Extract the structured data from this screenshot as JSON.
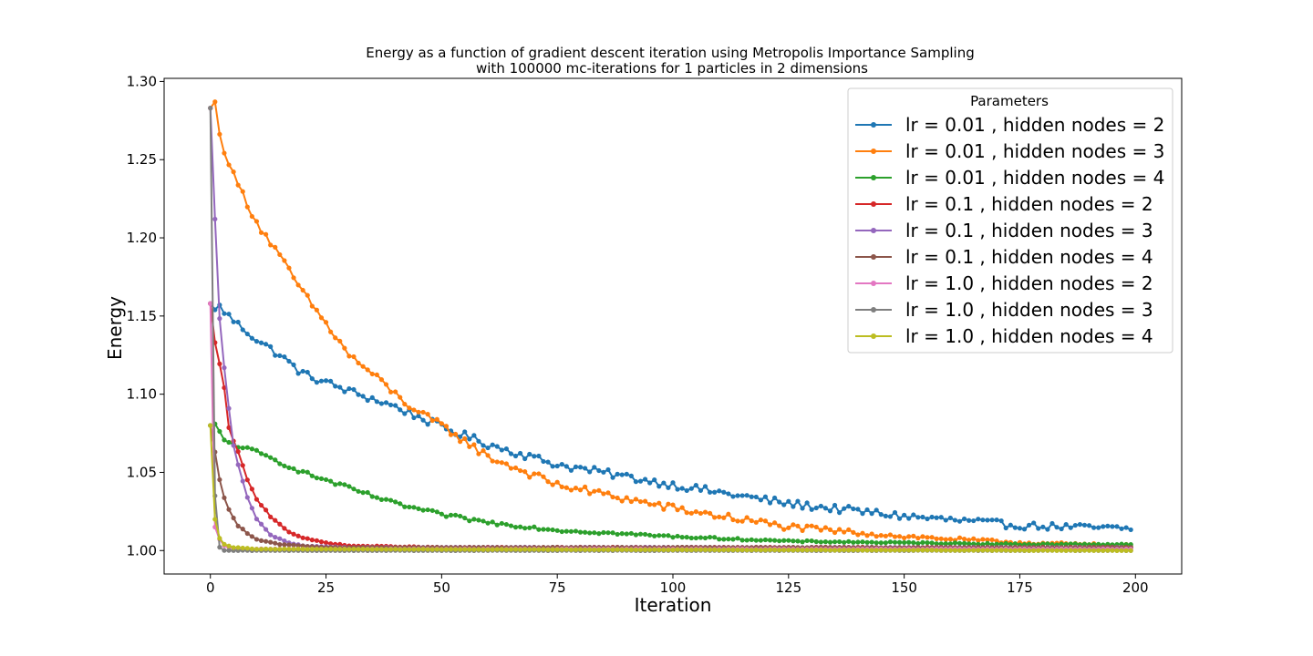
{
  "chart_data": {
    "type": "line",
    "title": "Energy as a function of gradient descent iteration using Metropolis Importance Sampling",
    "subtitle": "with 100000 mc-iterations for 1 particles in 2 dimensions",
    "xlabel": "Iteration",
    "ylabel": "Energy",
    "xlim": [
      -10,
      210
    ],
    "ylim": [
      0.985,
      1.302
    ],
    "xticks": [
      0,
      25,
      50,
      75,
      100,
      125,
      150,
      175,
      200
    ],
    "xtick_labels": [
      "0",
      "25",
      "50",
      "75",
      "100",
      "125",
      "150",
      "175",
      "200"
    ],
    "yticks": [
      1.0,
      1.05,
      1.1,
      1.15,
      1.2,
      1.25,
      1.3
    ],
    "ytick_labels": [
      "1.00",
      "1.05",
      "1.10",
      "1.15",
      "1.20",
      "1.25",
      "1.30"
    ],
    "grid": false,
    "legend": {
      "title": "Parameters",
      "position": "top-right"
    },
    "x_range": [
      0,
      199
    ],
    "series": [
      {
        "name": "lr = 0.01 , hidden nodes = 2",
        "color": "#1f77b4",
        "keypoints": [
          [
            0,
            1.158
          ],
          [
            1,
            1.154
          ],
          [
            2,
            1.156
          ],
          [
            5,
            1.147
          ],
          [
            10,
            1.135
          ],
          [
            15,
            1.125
          ],
          [
            20,
            1.113
          ],
          [
            30,
            1.102
          ],
          [
            40,
            1.092
          ],
          [
            50,
            1.079
          ],
          [
            60,
            1.068
          ],
          [
            75,
            1.055
          ],
          [
            100,
            1.042
          ],
          [
            125,
            1.03
          ],
          [
            150,
            1.022
          ],
          [
            175,
            1.016
          ],
          [
            199,
            1.014
          ]
        ],
        "noise": 0.0025
      },
      {
        "name": "lr = 0.01 , hidden nodes = 3",
        "color": "#ff7f0e",
        "keypoints": [
          [
            0,
            1.283
          ],
          [
            1,
            1.287
          ],
          [
            2,
            1.265
          ],
          [
            5,
            1.24
          ],
          [
            10,
            1.21
          ],
          [
            15,
            1.188
          ],
          [
            20,
            1.165
          ],
          [
            25,
            1.145
          ],
          [
            30,
            1.125
          ],
          [
            35,
            1.113
          ],
          [
            40,
            1.1
          ],
          [
            45,
            1.088
          ],
          [
            50,
            1.08
          ],
          [
            60,
            1.06
          ],
          [
            75,
            1.042
          ],
          [
            100,
            1.027
          ],
          [
            125,
            1.015
          ],
          [
            150,
            1.009
          ],
          [
            175,
            1.005
          ],
          [
            199,
            1.003
          ]
        ],
        "noise": 0.0025
      },
      {
        "name": "lr = 0.01 , hidden nodes = 4",
        "color": "#2ca02c",
        "keypoints": [
          [
            0,
            1.08
          ],
          [
            1,
            1.081
          ],
          [
            3,
            1.07
          ],
          [
            10,
            1.063
          ],
          [
            20,
            1.05
          ],
          [
            30,
            1.04
          ],
          [
            40,
            1.03
          ],
          [
            50,
            1.023
          ],
          [
            60,
            1.018
          ],
          [
            75,
            1.013
          ],
          [
            100,
            1.009
          ],
          [
            125,
            1.006
          ],
          [
            150,
            1.005
          ],
          [
            175,
            1.004
          ],
          [
            199,
            1.004
          ]
        ],
        "noise": 0.0012
      },
      {
        "name": "lr = 0.1 , hidden nodes = 2",
        "color": "#d62728",
        "keypoints": [
          [
            0,
            1.158
          ],
          [
            1,
            1.133
          ],
          [
            2,
            1.119
          ],
          [
            3,
            1.104
          ],
          [
            4,
            1.078
          ],
          [
            6,
            1.063
          ],
          [
            8,
            1.045
          ],
          [
            10,
            1.033
          ],
          [
            13,
            1.022
          ],
          [
            17,
            1.012
          ],
          [
            20,
            1.008
          ],
          [
            25,
            1.005
          ],
          [
            30,
            1.003
          ],
          [
            50,
            1.002
          ],
          [
            199,
            1.002
          ]
        ],
        "noise": 0.0006
      },
      {
        "name": "lr = 0.1 , hidden nodes = 3",
        "color": "#9467bd",
        "keypoints": [
          [
            0,
            1.283
          ],
          [
            1,
            1.212
          ],
          [
            2,
            1.148
          ],
          [
            3,
            1.117
          ],
          [
            4,
            1.091
          ],
          [
            5,
            1.067
          ],
          [
            6,
            1.055
          ],
          [
            8,
            1.034
          ],
          [
            10,
            1.02
          ],
          [
            13,
            1.01
          ],
          [
            17,
            1.005
          ],
          [
            20,
            1.003
          ],
          [
            30,
            1.002
          ],
          [
            199,
            1.002
          ]
        ],
        "noise": 0.0005
      },
      {
        "name": "lr = 0.1 , hidden nodes = 4",
        "color": "#8c564b",
        "keypoints": [
          [
            0,
            1.08
          ],
          [
            1,
            1.063
          ],
          [
            2,
            1.045
          ],
          [
            3,
            1.034
          ],
          [
            4,
            1.026
          ],
          [
            6,
            1.016
          ],
          [
            8,
            1.011
          ],
          [
            10,
            1.007
          ],
          [
            15,
            1.004
          ],
          [
            25,
            1.002
          ],
          [
            199,
            1.002
          ]
        ],
        "noise": 0.0004
      },
      {
        "name": "lr = 1.0 , hidden nodes = 2",
        "color": "#e377c2",
        "keypoints": [
          [
            0,
            1.158
          ],
          [
            1,
            1.015
          ],
          [
            2,
            1.007
          ],
          [
            3,
            1.003
          ],
          [
            5,
            1.001
          ],
          [
            199,
            1.001
          ]
        ],
        "noise": 0.0004
      },
      {
        "name": "lr = 1.0 , hidden nodes = 3",
        "color": "#7f7f7f",
        "keypoints": [
          [
            0,
            1.283
          ],
          [
            1,
            1.035
          ],
          [
            2,
            1.002
          ],
          [
            3,
            1.0
          ],
          [
            199,
            1.0
          ]
        ],
        "noise": 0.0003
      },
      {
        "name": "lr = 1.0 , hidden nodes = 4",
        "color": "#bcbd22",
        "keypoints": [
          [
            0,
            1.08
          ],
          [
            1,
            1.02
          ],
          [
            2,
            1.008
          ],
          [
            3,
            1.004
          ],
          [
            5,
            1.002
          ],
          [
            10,
            1.001
          ],
          [
            199,
            1.0
          ]
        ],
        "noise": 0.0003
      }
    ]
  }
}
